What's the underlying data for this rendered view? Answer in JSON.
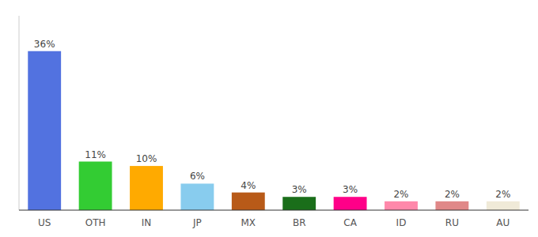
{
  "chart_data": {
    "type": "bar",
    "categories": [
      "US",
      "OTH",
      "IN",
      "JP",
      "MX",
      "BR",
      "CA",
      "ID",
      "RU",
      "AU"
    ],
    "values": [
      36,
      11,
      10,
      6,
      4,
      3,
      3,
      2,
      2,
      2
    ],
    "value_labels": [
      "36%",
      "11%",
      "10%",
      "6%",
      "4%",
      "3%",
      "3%",
      "2%",
      "2%",
      "2%"
    ],
    "colors": [
      "#5272e0",
      "#33cc33",
      "#ffaa00",
      "#88ccee",
      "#b85a18",
      "#1a6e1a",
      "#ff0088",
      "#ff88aa",
      "#e08888",
      "#f0ead8"
    ],
    "ylim": [
      0,
      44
    ],
    "data_labels": true,
    "tick_labels": "x",
    "grid": false
  }
}
